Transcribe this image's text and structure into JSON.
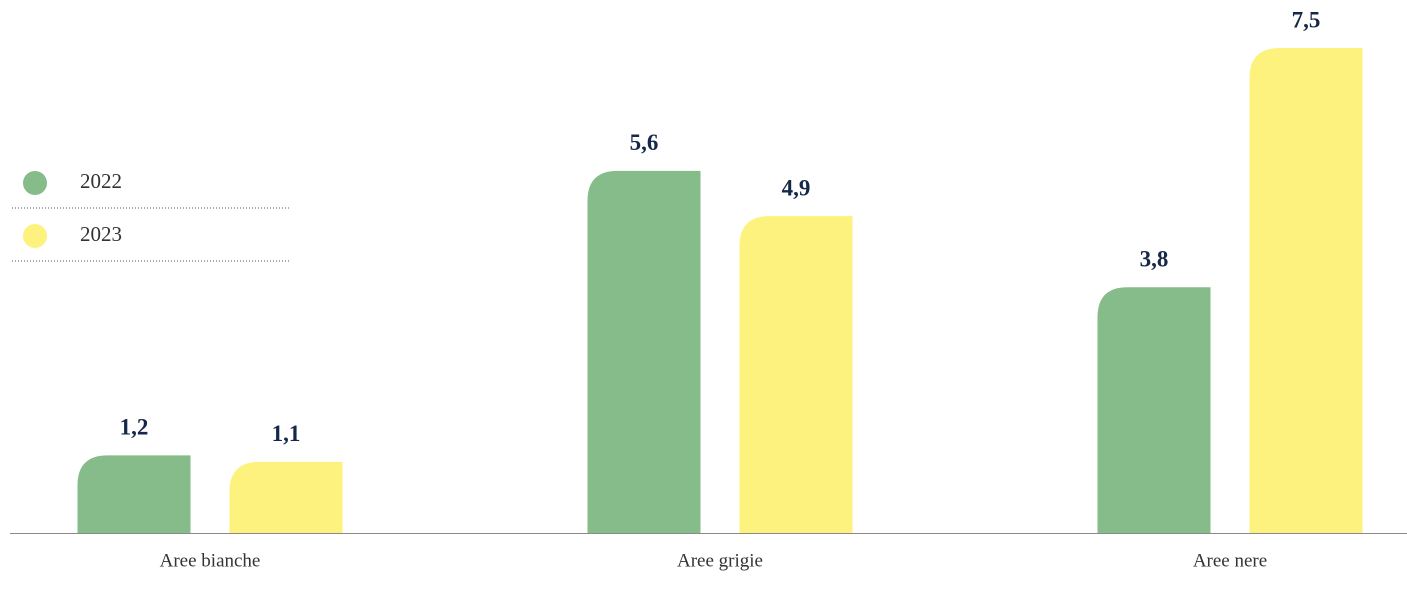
{
  "chart_data": {
    "type": "bar",
    "categories": [
      "Aree bianche",
      "Aree grigie",
      "Aree nere"
    ],
    "series": [
      {
        "name": "2022",
        "color": "#86bb8a",
        "values": [
          1.2,
          5.6,
          3.8
        ],
        "value_labels": [
          "1,2",
          "5,6",
          "3,8"
        ]
      },
      {
        "name": "2023",
        "color": "#fdf27e",
        "values": [
          1.1,
          4.9,
          7.5
        ],
        "value_labels": [
          "1,1",
          "4,9",
          "7,5"
        ]
      }
    ],
    "legend": "left"
  }
}
